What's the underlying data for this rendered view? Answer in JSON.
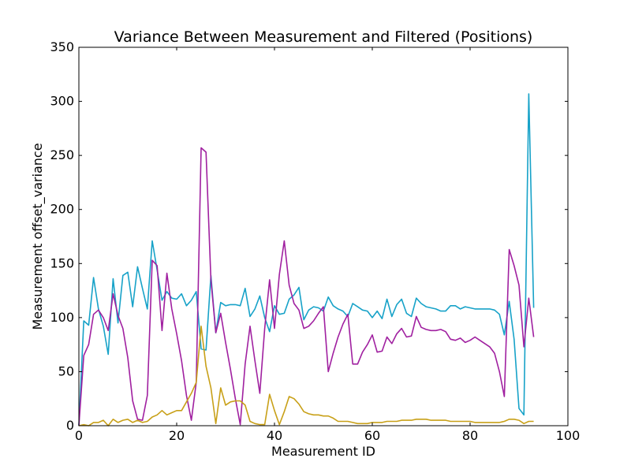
{
  "chart_data": {
    "type": "line",
    "title": "Variance Between Measurement and Filtered (Positions)",
    "xlabel": "Measurement ID",
    "ylabel": "Measurement offset_variance",
    "xlim": [
      0,
      100
    ],
    "ylim": [
      0,
      350
    ],
    "xticks": [
      "0",
      "20",
      "40",
      "60",
      "80",
      "100"
    ],
    "yticks": [
      "0",
      "50",
      "100",
      "150",
      "200",
      "250",
      "300",
      "350"
    ],
    "grid": false,
    "legend": "none",
    "series": [
      {
        "color": "#17a2c8",
        "x": [
          0,
          1,
          2,
          3,
          4,
          5,
          6,
          7,
          8,
          9,
          10,
          11,
          12,
          13,
          14,
          15,
          16,
          17,
          18,
          19,
          20,
          21,
          22,
          23,
          24,
          25,
          26,
          27,
          28,
          29,
          30,
          31,
          32,
          33,
          34,
          35,
          36,
          37,
          38,
          39,
          40,
          41,
          42,
          43,
          44,
          45,
          46,
          47,
          48,
          49,
          50,
          51,
          52,
          53,
          54,
          55,
          56,
          57,
          58,
          59,
          60,
          61,
          62,
          63,
          64,
          65,
          66,
          67,
          68,
          69,
          70,
          71,
          72,
          73,
          74,
          75,
          76,
          77,
          78,
          79,
          80,
          81,
          82,
          83,
          84,
          85,
          86,
          87,
          88,
          89,
          90,
          91,
          92,
          93
        ],
        "y": [
          0,
          97,
          93,
          137,
          108,
          92,
          66,
          136,
          95,
          139,
          142,
          110,
          147,
          127,
          108,
          171,
          144,
          116,
          124,
          118,
          117,
          122,
          111,
          116,
          124,
          71,
          70,
          139,
          86,
          114,
          111,
          112,
          112,
          111,
          127,
          101,
          108,
          120,
          100,
          87,
          111,
          103,
          104,
          117,
          121,
          128,
          98,
          107,
          110,
          109,
          106,
          119,
          111,
          108,
          106,
          101,
          113,
          110,
          107,
          106,
          100,
          106,
          99,
          117,
          101,
          112,
          117,
          104,
          101,
          118,
          113,
          110,
          109,
          108,
          106,
          106,
          111,
          111,
          108,
          110,
          109,
          108,
          108,
          108,
          108,
          107,
          103,
          84,
          115,
          80,
          16,
          10,
          307,
          109
        ]
      },
      {
        "color": "#a020a0",
        "x": [
          0,
          1,
          2,
          3,
          4,
          5,
          6,
          7,
          8,
          9,
          10,
          11,
          12,
          13,
          14,
          15,
          16,
          17,
          18,
          19,
          20,
          21,
          22,
          23,
          24,
          25,
          26,
          27,
          28,
          29,
          30,
          31,
          32,
          33,
          34,
          35,
          36,
          37,
          38,
          39,
          40,
          41,
          42,
          43,
          44,
          45,
          46,
          47,
          48,
          49,
          50,
          51,
          52,
          53,
          54,
          55,
          56,
          57,
          58,
          59,
          60,
          61,
          62,
          63,
          64,
          65,
          66,
          67,
          68,
          69,
          70,
          71,
          72,
          73,
          74,
          75,
          76,
          77,
          78,
          79,
          80,
          81,
          82,
          83,
          84,
          85,
          86,
          87,
          88,
          89,
          90,
          91,
          92,
          93
        ],
        "y": [
          0,
          65,
          75,
          103,
          107,
          100,
          88,
          122,
          102,
          90,
          63,
          23,
          6,
          5,
          28,
          153,
          148,
          88,
          141,
          108,
          85,
          60,
          28,
          5,
          40,
          257,
          253,
          135,
          86,
          104,
          77,
          52,
          25,
          1,
          57,
          92,
          60,
          30,
          90,
          135,
          90,
          140,
          171,
          130,
          113,
          107,
          90,
          92,
          97,
          104,
          110,
          50,
          67,
          82,
          94,
          103,
          57,
          57,
          68,
          75,
          84,
          68,
          69,
          82,
          76,
          85,
          90,
          82,
          83,
          101,
          91,
          89,
          88,
          88,
          89,
          87,
          80,
          79,
          81,
          77,
          79,
          82,
          79,
          76,
          73,
          67,
          50,
          27,
          163,
          148,
          130,
          73,
          118,
          82
        ]
      },
      {
        "color": "#c8a018",
        "x": [
          0,
          1,
          2,
          3,
          4,
          5,
          6,
          7,
          8,
          9,
          10,
          11,
          12,
          13,
          14,
          15,
          16,
          17,
          18,
          19,
          20,
          21,
          22,
          23,
          24,
          25,
          26,
          27,
          28,
          29,
          30,
          31,
          32,
          33,
          34,
          35,
          36,
          37,
          38,
          39,
          40,
          41,
          42,
          43,
          44,
          45,
          46,
          47,
          48,
          49,
          50,
          51,
          52,
          53,
          54,
          55,
          56,
          57,
          58,
          59,
          60,
          61,
          62,
          63,
          64,
          65,
          66,
          67,
          68,
          69,
          70,
          71,
          72,
          73,
          74,
          75,
          76,
          77,
          78,
          79,
          80,
          81,
          82,
          83,
          84,
          85,
          86,
          87,
          88,
          89,
          90,
          91,
          92,
          93
        ],
        "y": [
          0,
          1,
          0,
          3,
          3,
          5,
          0,
          6,
          3,
          5,
          6,
          3,
          5,
          3,
          4,
          8,
          10,
          14,
          10,
          12,
          14,
          14,
          22,
          30,
          40,
          92,
          55,
          35,
          2,
          35,
          19,
          22,
          23,
          23,
          19,
          4,
          2,
          1,
          1,
          29,
          14,
          1,
          13,
          27,
          25,
          20,
          13,
          11,
          10,
          10,
          9,
          9,
          7,
          4,
          4,
          4,
          3,
          2,
          2,
          2,
          3,
          3,
          3,
          4,
          4,
          4,
          5,
          5,
          5,
          6,
          6,
          6,
          5,
          5,
          5,
          5,
          4,
          4,
          4,
          4,
          4,
          3,
          3,
          3,
          3,
          3,
          3,
          4,
          6,
          6,
          5,
          2,
          4,
          4
        ]
      }
    ]
  }
}
